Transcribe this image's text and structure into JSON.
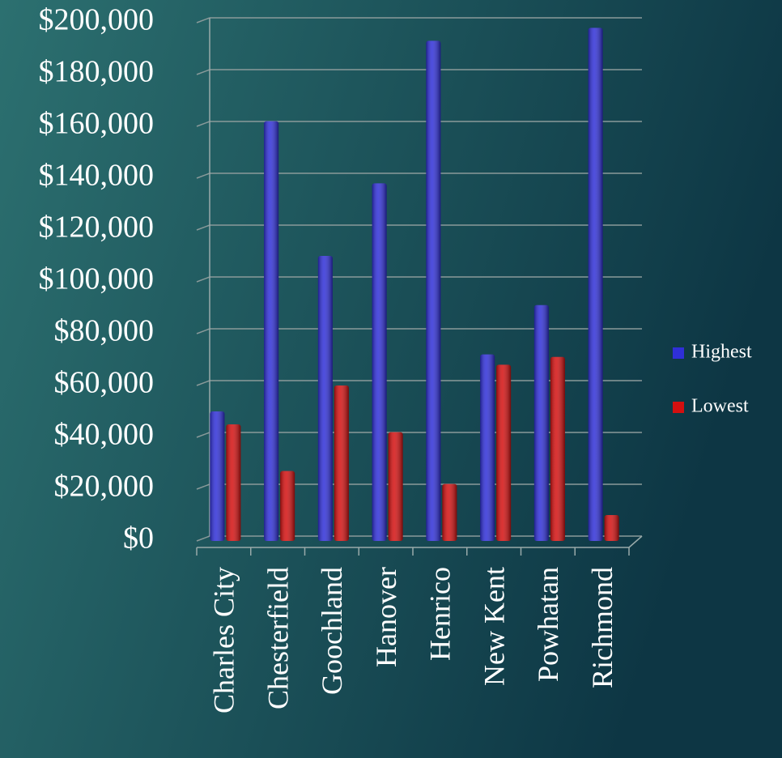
{
  "chart_data": {
    "type": "bar",
    "categories": [
      "Charles City",
      "Chesterfield",
      "Goochland",
      "Hanover",
      "Henrico",
      "New Kent",
      "Powhatan",
      "Richmond"
    ],
    "series": [
      {
        "name": "Highest",
        "color": "#2f2fd8",
        "values": [
          50000,
          162000,
          110000,
          138000,
          193000,
          72000,
          91000,
          198000
        ]
      },
      {
        "name": "Lowest",
        "color": "#d41010",
        "values": [
          45000,
          27000,
          60000,
          42000,
          22000,
          68000,
          71000,
          10000
        ]
      }
    ],
    "ylim": [
      0,
      200000
    ],
    "yticks": [
      {
        "value": 0,
        "label": "$0"
      },
      {
        "value": 20000,
        "label": "$20,000"
      },
      {
        "value": 40000,
        "label": "$40,000"
      },
      {
        "value": 60000,
        "label": "$60,000"
      },
      {
        "value": 80000,
        "label": "$80,000"
      },
      {
        "value": 100000,
        "label": "$100,000"
      },
      {
        "value": 120000,
        "label": "$120,000"
      },
      {
        "value": 140000,
        "label": "$140,000"
      },
      {
        "value": 160000,
        "label": "$160,000"
      },
      {
        "value": 180000,
        "label": "$180,000"
      },
      {
        "value": 200000,
        "label": "$200,000"
      }
    ],
    "grid": true,
    "legend": "right"
  }
}
